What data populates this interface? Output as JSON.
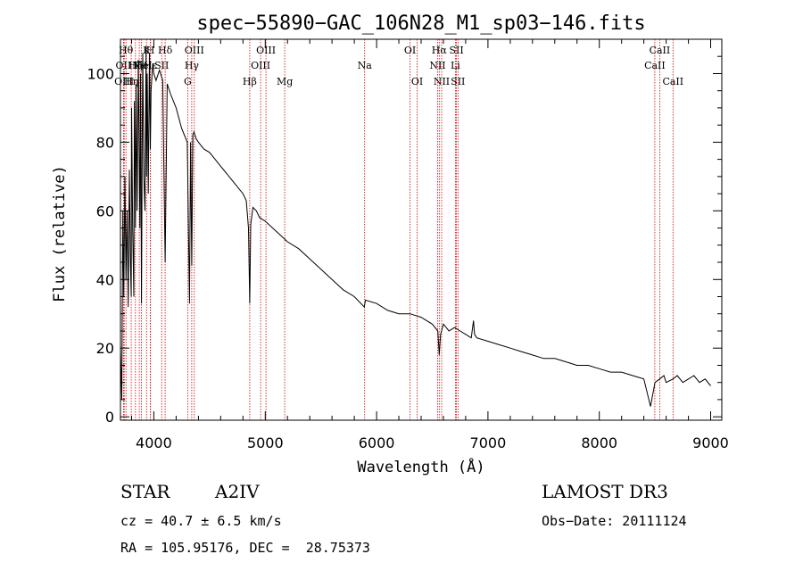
{
  "chart_data": {
    "type": "line",
    "title": "spec−55890−GAC_106N28_M1_sp03−146.fits",
    "xlabel": "Wavelength (Å)",
    "ylabel": "Flux (relative)",
    "xlim": [
      3700,
      9100
    ],
    "ylim": [
      -1,
      110
    ],
    "xticks": [
      4000,
      5000,
      6000,
      7000,
      8000,
      9000
    ],
    "yticks": [
      0,
      20,
      40,
      60,
      80,
      100
    ],
    "x_tick_labels": [
      "4000",
      "5000",
      "6000",
      "7000",
      "8000",
      "9000"
    ],
    "y_tick_labels": [
      "0",
      "20",
      "40",
      "60",
      "80",
      "100"
    ],
    "series": [
      {
        "name": "spectrum",
        "color": "#000000",
        "x": [
          3700,
          3712,
          3722,
          3730,
          3740,
          3750,
          3760,
          3770,
          3780,
          3790,
          3797,
          3800,
          3810,
          3820,
          3825,
          3835,
          3840,
          3850,
          3860,
          3875,
          3880,
          3889,
          3895,
          3900,
          3910,
          3920,
          3930,
          3934,
          3940,
          3950,
          3960,
          3968,
          3975,
          3990,
          4000,
          4020,
          4050,
          4080,
          4101,
          4120,
          4150,
          4200,
          4250,
          4300,
          4320,
          4330,
          4340,
          4350,
          4360,
          4380,
          4400,
          4450,
          4500,
          4550,
          4600,
          4650,
          4700,
          4750,
          4800,
          4830,
          4850,
          4861,
          4870,
          4890,
          4920,
          4950,
          5000,
          5100,
          5200,
          5300,
          5400,
          5500,
          5600,
          5700,
          5800,
          5890,
          5900,
          6000,
          6100,
          6200,
          6300,
          6400,
          6500,
          6550,
          6563,
          6575,
          6600,
          6650,
          6700,
          6750,
          6800,
          6850,
          6870,
          6880,
          6900,
          7000,
          7100,
          7200,
          7300,
          7400,
          7500,
          7600,
          7700,
          7800,
          7900,
          8000,
          8100,
          8200,
          8300,
          8400,
          8460,
          8500,
          8542,
          8580,
          8600,
          8662,
          8700,
          8750,
          8800,
          8850,
          8900,
          8950,
          9000
        ],
        "values": [
          20,
          5,
          60,
          35,
          70,
          40,
          60,
          32,
          72,
          45,
          35,
          90,
          55,
          35,
          92,
          55,
          97,
          60,
          104,
          55,
          100,
          33,
          75,
          106,
          70,
          60,
          108,
          70,
          100,
          65,
          106,
          78,
          95,
          103,
          100,
          98,
          101,
          98,
          45,
          97,
          94,
          90,
          84,
          80,
          33,
          80,
          44,
          82,
          83,
          81,
          80,
          78,
          77,
          75,
          73,
          71,
          69,
          67,
          65,
          63,
          55,
          33,
          56,
          61,
          60,
          58,
          57,
          54,
          51,
          49,
          46,
          43,
          40,
          37,
          35,
          32,
          34,
          33,
          31,
          30,
          30,
          29,
          27,
          25,
          18,
          24,
          27,
          25,
          26,
          25,
          24,
          23,
          28,
          24,
          23,
          22,
          21,
          20,
          19,
          18,
          17,
          17,
          16,
          15,
          15,
          14,
          13,
          13,
          12,
          11,
          3,
          10,
          11,
          12,
          10,
          11,
          12,
          10,
          11,
          12,
          10,
          11,
          9
        ]
      }
    ],
    "lines": [
      {
        "w": 3750,
        "l": "Hθ",
        "row": 1
      },
      {
        "w": 3727,
        "l": "OII",
        "row": 2
      },
      {
        "w": 3734,
        "l": "OIII",
        "row": 3
      },
      {
        "w": 3797,
        "l": "Hη",
        "row": 3
      },
      {
        "w": 3835,
        "l": "Hζ",
        "row": 2
      },
      {
        "w": 3869,
        "l": "Ne",
        "row": 2
      },
      {
        "w": 3889,
        "l": "He",
        "row": 2
      },
      {
        "w": 3934,
        "l": "K",
        "row": 1
      },
      {
        "w": 3968,
        "l": "H",
        "row": 1
      },
      {
        "w": 3970,
        "l": "Hε",
        "row": 2
      },
      {
        "w": 4101,
        "l": "Hδ",
        "row": 1
      },
      {
        "w": 4070,
        "l": "SII",
        "row": 2
      },
      {
        "w": 4304,
        "l": "G",
        "row": 3
      },
      {
        "w": 4340,
        "l": "Hγ",
        "row": 2
      },
      {
        "w": 4363,
        "l": "OIII",
        "row": 1
      },
      {
        "w": 4861,
        "l": "Hβ",
        "row": 3
      },
      {
        "w": 4959,
        "l": "OIII",
        "row": 2
      },
      {
        "w": 5007,
        "l": "OIII",
        "row": 1
      },
      {
        "w": 5175,
        "l": "Mg",
        "row": 3
      },
      {
        "w": 5893,
        "l": "Na",
        "row": 2
      },
      {
        "w": 6300,
        "l": "OI",
        "row": 1
      },
      {
        "w": 6364,
        "l": "OI",
        "row": 3
      },
      {
        "w": 6548,
        "l": "NII",
        "row": 2
      },
      {
        "w": 6563,
        "l": "Hα",
        "row": 1
      },
      {
        "w": 6584,
        "l": "NII",
        "row": 3
      },
      {
        "w": 6708,
        "l": "Li",
        "row": 2
      },
      {
        "w": 6717,
        "l": "SII",
        "row": 1
      },
      {
        "w": 6731,
        "l": "SII",
        "row": 3
      },
      {
        "w": 8498,
        "l": "CaII",
        "row": 2
      },
      {
        "w": 8542,
        "l": "CaII",
        "row": 1
      },
      {
        "w": 8662,
        "l": "CaII",
        "row": 3
      }
    ]
  },
  "info": {
    "object_type": "STAR",
    "subclass": "A2IV",
    "survey": "LAMOST DR3",
    "redshift": "cz = 40.7 ± 6.5 km/s",
    "obs_date": "Obs−Date: 20111124",
    "coords": "RA = 105.95176, DEC =  28.75373"
  },
  "colors": {
    "spectrum": "#000000",
    "line_marker": "#cc0000",
    "background": "#ffffff"
  }
}
